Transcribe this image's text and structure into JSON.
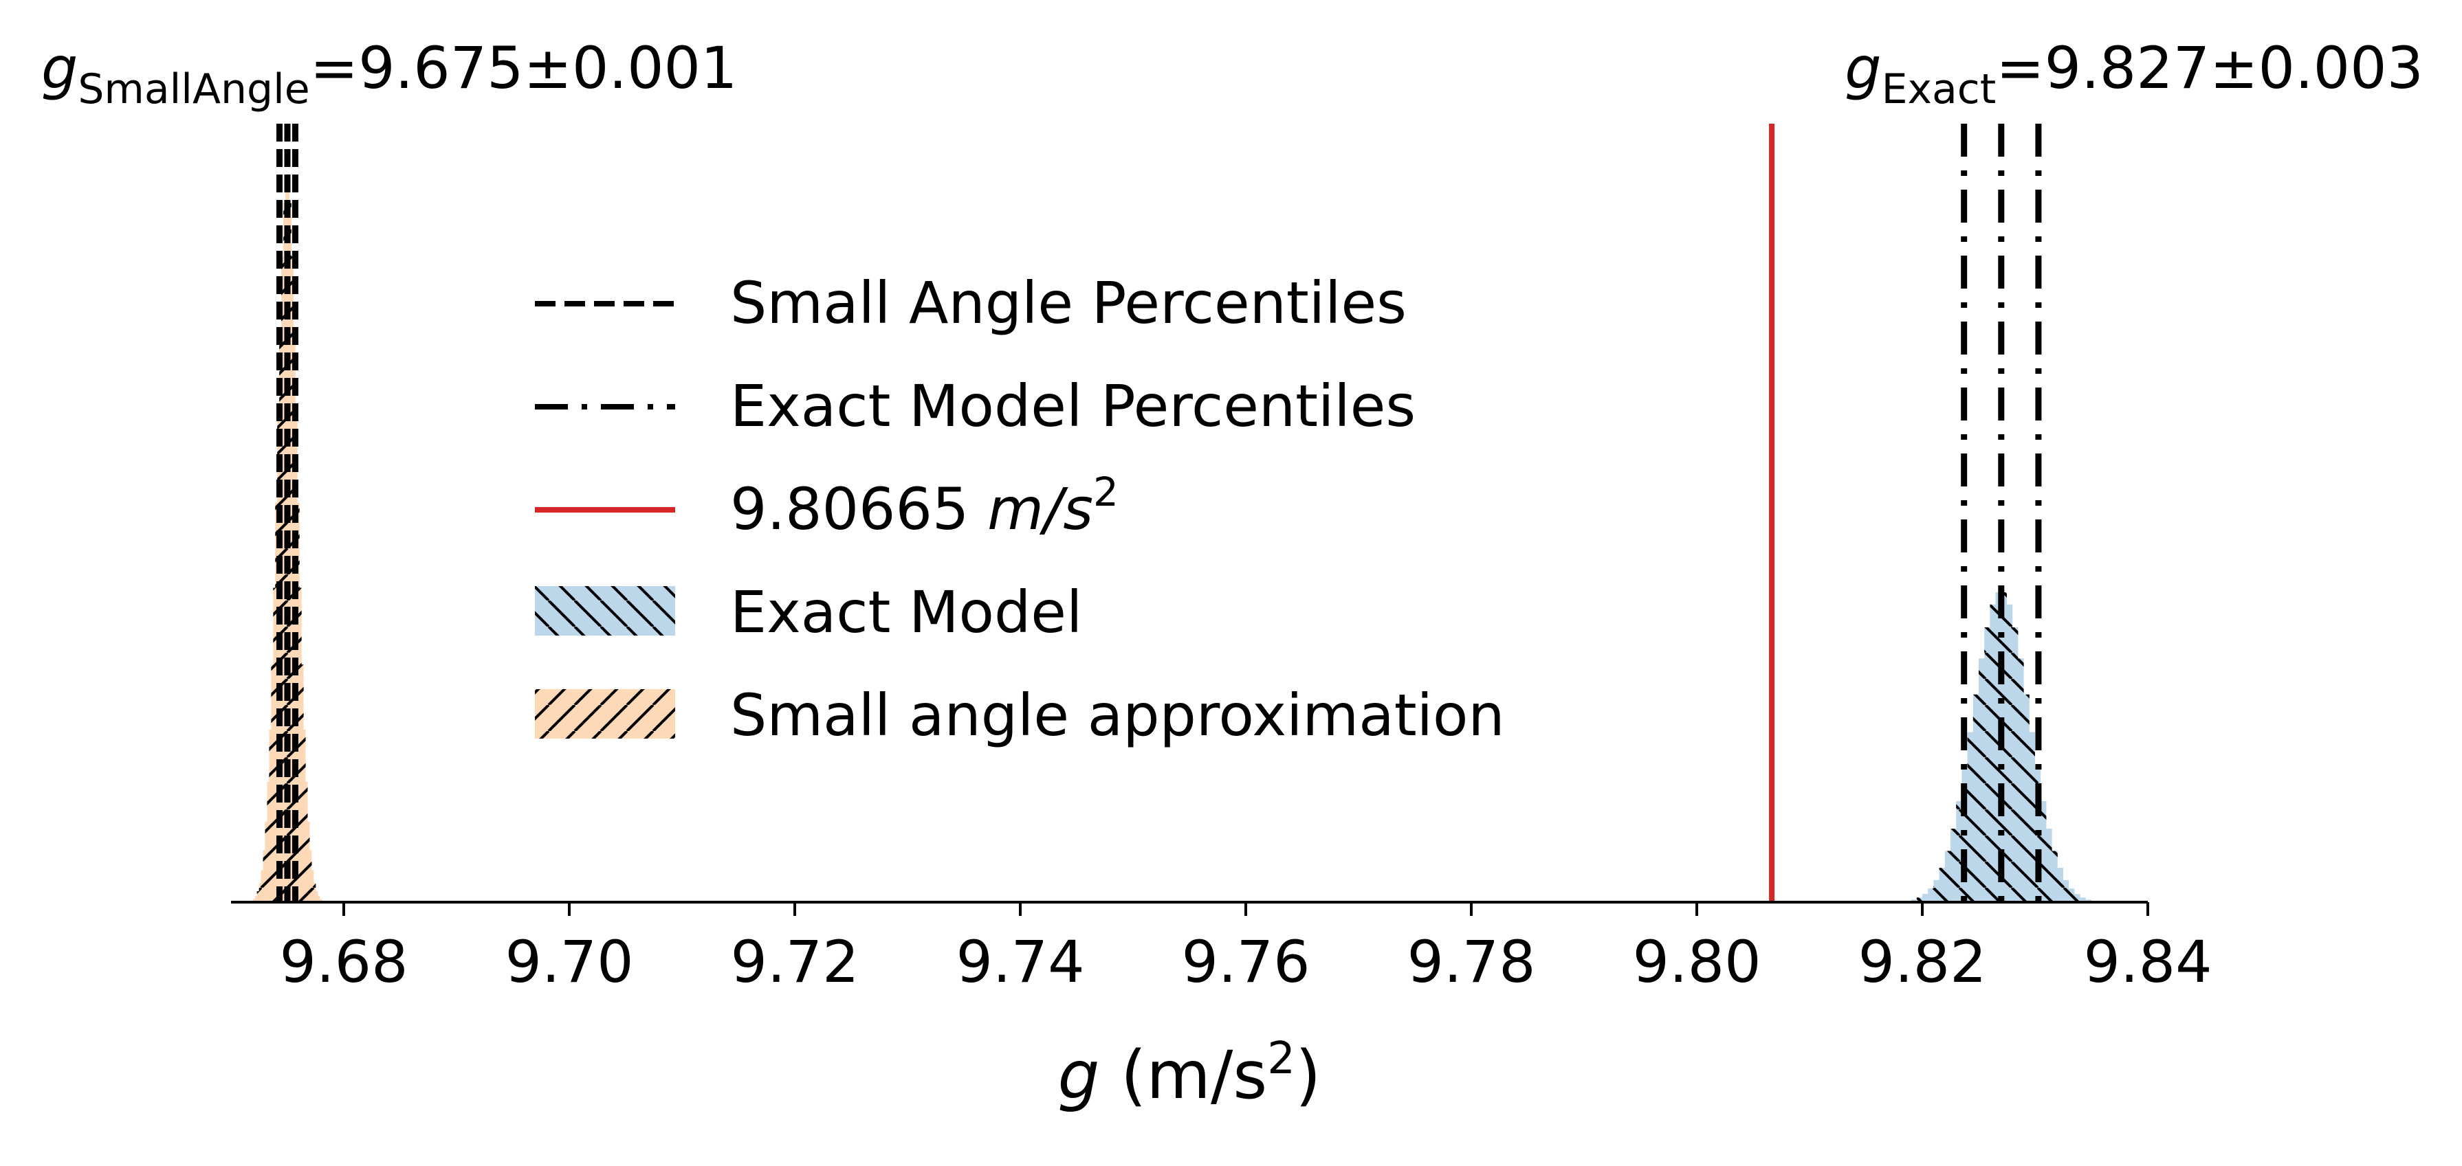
{
  "chart_data": {
    "type": "histogram",
    "title_left": {
      "var": "g",
      "sub": "SmallAngle",
      "value": "=9.675±0.001"
    },
    "title_right": {
      "var": "g",
      "sub": "Exact",
      "value": "=9.827±0.003"
    },
    "xlabel": {
      "var": "g",
      "units": " (m/s",
      "sup": "2",
      "close": ")"
    },
    "xlim": [
      9.67,
      9.84
    ],
    "xticks": [
      9.68,
      9.7,
      9.72,
      9.74,
      9.76,
      9.78,
      9.8,
      9.82,
      9.84
    ],
    "xtick_labels": [
      "9.68",
      "9.70",
      "9.72",
      "9.74",
      "9.76",
      "9.78",
      "9.80",
      "9.82",
      "9.84"
    ],
    "y_axis_visible": false,
    "reference_line": {
      "x": 9.80665,
      "color": "#d62728"
    },
    "series": [
      {
        "name": "Exact Model",
        "color": "#bcd6ea",
        "hatch": "\\\\",
        "mean": 9.827,
        "std": 0.0025,
        "relative_peak_height": 0.4,
        "percentiles": [
          9.8237,
          9.827,
          9.8303
        ],
        "percentile_style": "dash-dot"
      },
      {
        "name": "Small angle approximation",
        "color": "#fdd9b8",
        "hatch": "//",
        "mean": 9.675,
        "std": 0.0009,
        "relative_peak_height": 0.94,
        "percentiles": [
          9.6743,
          9.675,
          9.6757
        ],
        "percentile_style": "dashed"
      }
    ],
    "legend": {
      "position": "upper-center-left",
      "entries": [
        {
          "label": "Small Angle Percentiles",
          "kind": "dashed"
        },
        {
          "label": "Exact Model Percentiles",
          "kind": "dashdot"
        },
        {
          "label_prefix": "9.80665 ",
          "label_italic": "m/s",
          "label_sup": "2",
          "kind": "redline"
        },
        {
          "label": "Exact Model",
          "kind": "hatch-blue"
        },
        {
          "label": "Small angle approximation",
          "kind": "hatch-orange"
        }
      ]
    },
    "colors": {
      "exact_fill": "#bcd6ea",
      "small_fill": "#fdd9b8",
      "reference": "#d62728",
      "lines": "#000000"
    }
  }
}
